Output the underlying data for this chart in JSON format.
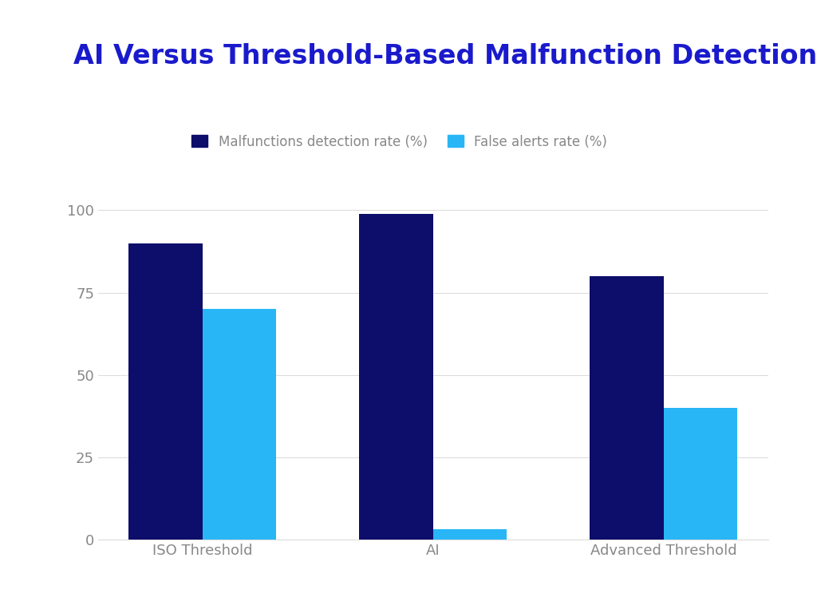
{
  "title": "AI Versus Threshold-Based Malfunction Detection Rates",
  "categories": [
    "ISO Threshold",
    "AI",
    "Advanced Threshold"
  ],
  "detection_values": [
    90,
    99,
    80
  ],
  "false_alert_values": [
    70,
    3,
    40
  ],
  "detection_color": "#0d0d6b",
  "false_alert_color": "#29b6f6",
  "title_color": "#1a1acc",
  "tick_label_color": "#888888",
  "background_color": "#ffffff",
  "grid_color": "#dddddd",
  "ylim": [
    0,
    108
  ],
  "yticks": [
    0,
    25,
    50,
    75,
    100
  ],
  "legend_labels": [
    "Malfunctions detection rate (%)",
    "False alerts rate (%)"
  ],
  "bar_width": 0.32,
  "title_fontsize": 24,
  "legend_fontsize": 12,
  "tick_fontsize": 13,
  "xlabel_fontsize": 13
}
